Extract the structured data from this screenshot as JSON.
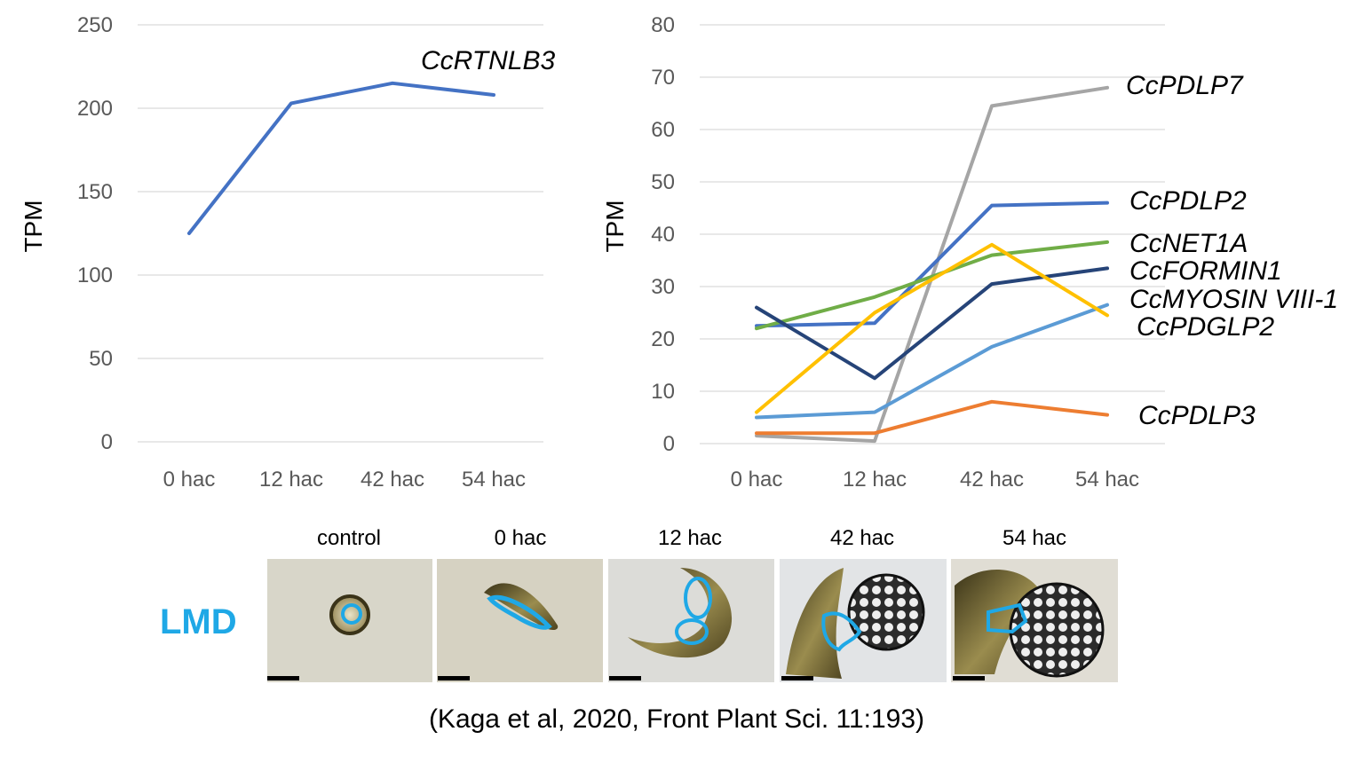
{
  "chart_data": [
    {
      "type": "line",
      "categories": [
        "0 hac",
        "12 hac",
        "42 hac",
        "54 hac"
      ],
      "ylabel": "TPM",
      "ylim": [
        0,
        250
      ],
      "yticks": [
        "0",
        "50",
        "100",
        "150",
        "200",
        "250"
      ],
      "grid": true,
      "series": [
        {
          "name": "CcRTNLB3",
          "values": [
            125,
            203,
            215,
            208
          ],
          "color": "#4472c4"
        }
      ]
    },
    {
      "type": "line",
      "categories": [
        "0 hac",
        "12 hac",
        "42 hac",
        "54 hac"
      ],
      "ylabel": "TPM",
      "ylim": [
        0,
        80
      ],
      "yticks": [
        "0",
        "10",
        "20",
        "30",
        "40",
        "50",
        "60",
        "70",
        "80"
      ],
      "grid": true,
      "series": [
        {
          "name": "CcPDLP7",
          "values": [
            1.5,
            0.5,
            64.5,
            68
          ],
          "color": "#a5a5a5"
        },
        {
          "name": "CcPDLP2",
          "values": [
            22.5,
            23,
            45.5,
            46
          ],
          "color": "#4472c4"
        },
        {
          "name": "CcNET1A",
          "values": [
            22,
            28,
            36,
            38.5
          ],
          "color": "#70ad47"
        },
        {
          "name": "CcFORMIN1",
          "values": [
            26,
            12.5,
            30.5,
            33.5
          ],
          "color": "#264478"
        },
        {
          "name": "CcMYOSIN VIII-1",
          "values": [
            5,
            6,
            18.5,
            26.5
          ],
          "color": "#5b9bd5"
        },
        {
          "name": "CcPDGLP2",
          "values": [
            6,
            25,
            38,
            24.5
          ],
          "color": "#ffc000"
        },
        {
          "name": "CcPDLP3",
          "values": [
            2,
            2,
            8,
            5.5
          ],
          "color": "#ed7d31"
        }
      ]
    }
  ],
  "micrographs": {
    "label": "LMD",
    "label_color": "#1fa8e6",
    "outline_color": "#1fa8e6",
    "panels": [
      "control",
      "0 hac",
      "12 hac",
      "42 hac",
      "54 hac"
    ]
  },
  "citation": "(Kaga et al, 2020, Front Plant Sci. 11:193)"
}
